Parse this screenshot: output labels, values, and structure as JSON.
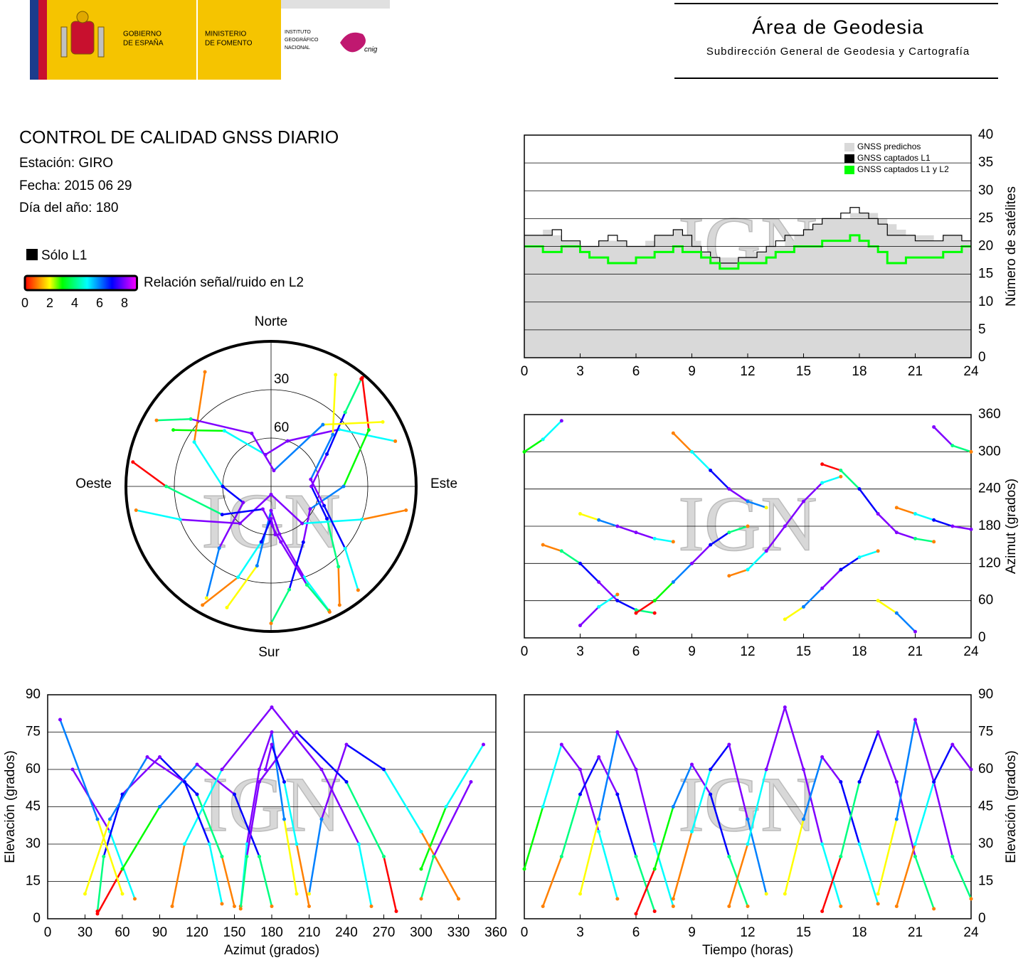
{
  "header": {
    "gov": [
      "GOBIERNO",
      "DE ESPAÑA"
    ],
    "ministry": [
      "MINISTERIO",
      "DE FOMENTO"
    ],
    "institute": [
      "INSTITUTO",
      "GEOGRÁFICO",
      "NACIONAL"
    ],
    "cnig": "cnig",
    "area": "Área de Geodesia",
    "subdirection": "Subdirección General de Geodesia y Cartografía"
  },
  "report": {
    "title": "CONTROL DE CALIDAD GNSS DIARIO",
    "station": "Estación: GIRO",
    "date": "Fecha: 2015 06 29",
    "doy": "Día del año: 180"
  },
  "legend": {
    "l1_only": "Sólo L1",
    "l1_color": "#000000",
    "snr_label": "Relación señal/ruido en L2",
    "lim": [
      0,
      9
    ],
    "ticks": [
      0,
      2,
      4,
      6,
      8
    ],
    "colors": [
      "#ff0000",
      "#ff8000",
      "#ffff00",
      "#00ff00",
      "#00ff80",
      "#00ffff",
      "#0080ff",
      "#0000ff",
      "#8000ff",
      "#ff00ff"
    ]
  },
  "watermark": "IGN",
  "satellite_passes": [
    {
      "time": [
        0,
        1,
        2,
        3,
        4,
        5
      ],
      "azimuth": [
        300,
        320,
        350,
        20,
        50,
        70
      ],
      "elevation": [
        20,
        45,
        70,
        60,
        35,
        8
      ],
      "snr": [
        3,
        5,
        8,
        8,
        5,
        1
      ]
    },
    {
      "time": [
        1,
        2,
        3,
        4,
        5,
        6,
        7
      ],
      "azimuth": [
        150,
        140,
        120,
        90,
        60,
        45,
        40
      ],
      "elevation": [
        5,
        25,
        50,
        65,
        50,
        25,
        3
      ],
      "snr": [
        1,
        4,
        7,
        8,
        7,
        4,
        0
      ]
    },
    {
      "time": [
        3,
        4,
        5,
        6,
        7,
        8
      ],
      "azimuth": [
        200,
        190,
        180,
        170,
        160,
        155
      ],
      "elevation": [
        10,
        40,
        75,
        60,
        30,
        5
      ],
      "snr": [
        2,
        6,
        8,
        8,
        5,
        1
      ]
    },
    {
      "time": [
        6,
        7,
        8,
        9,
        10,
        11,
        12
      ],
      "azimuth": [
        40,
        60,
        90,
        120,
        150,
        170,
        180
      ],
      "elevation": [
        2,
        20,
        45,
        62,
        50,
        25,
        5
      ],
      "snr": [
        0,
        3,
        6,
        8,
        7,
        4,
        1
      ]
    },
    {
      "time": [
        8,
        9,
        10,
        11,
        12,
        13
      ],
      "azimuth": [
        330,
        300,
        270,
        240,
        220,
        210
      ],
      "elevation": [
        8,
        35,
        60,
        70,
        40,
        10
      ],
      "snr": [
        1,
        5,
        7,
        8,
        6,
        2
      ]
    },
    {
      "time": [
        11,
        12,
        13,
        14,
        15,
        16,
        17
      ],
      "azimuth": [
        100,
        110,
        140,
        180,
        220,
        250,
        260
      ],
      "elevation": [
        5,
        30,
        60,
        85,
        60,
        30,
        5
      ],
      "snr": [
        1,
        5,
        8,
        8,
        8,
        5,
        1
      ]
    },
    {
      "time": [
        14,
        15,
        16,
        17,
        18,
        19
      ],
      "azimuth": [
        30,
        50,
        80,
        110,
        130,
        140
      ],
      "elevation": [
        10,
        40,
        65,
        55,
        30,
        6
      ],
      "snr": [
        2,
        6,
        8,
        7,
        5,
        1
      ]
    },
    {
      "time": [
        16,
        17,
        18,
        19,
        20,
        21,
        22
      ],
      "azimuth": [
        280,
        270,
        240,
        200,
        170,
        160,
        155
      ],
      "elevation": [
        3,
        25,
        55,
        75,
        55,
        25,
        4
      ],
      "snr": [
        0,
        4,
        7,
        8,
        8,
        4,
        1
      ]
    },
    {
      "time": [
        19,
        20,
        21,
        22,
        23,
        24
      ],
      "azimuth": [
        60,
        40,
        10,
        340,
        310,
        300
      ],
      "elevation": [
        10,
        40,
        80,
        55,
        25,
        8
      ],
      "snr": [
        2,
        6,
        8,
        8,
        4,
        1
      ]
    },
    {
      "time": [
        20,
        21,
        22,
        23,
        24
      ],
      "azimuth": [
        210,
        200,
        190,
        180,
        175
      ],
      "elevation": [
        5,
        30,
        55,
        70,
        60
      ],
      "snr": [
        1,
        5,
        7,
        8,
        8
      ]
    }
  ],
  "chart_data": [
    {
      "type": "step",
      "y_label": "Número de satélites",
      "legend": "upper right",
      "grid": true,
      "x": [
        0,
        0.5,
        1,
        1.5,
        2,
        2.5,
        3,
        3.5,
        4,
        4.5,
        5,
        5.5,
        6,
        6.5,
        7,
        7.5,
        8,
        8.5,
        9,
        9.5,
        10,
        10.5,
        11,
        11.5,
        12,
        12.5,
        13,
        13.5,
        14,
        14.5,
        15,
        15.5,
        16,
        16.5,
        17,
        17.5,
        18,
        18.5,
        19,
        19.5,
        20,
        20.5,
        21,
        21.5,
        22,
        22.5,
        23,
        23.5,
        24
      ],
      "series": [
        {
          "name": "GNSS predichos",
          "color": "#d9d9d9",
          "values": [
            22,
            22,
            23,
            22,
            21,
            21,
            20,
            20,
            21,
            21,
            21,
            20,
            20,
            21,
            22,
            22,
            23,
            22,
            21,
            19,
            18,
            18,
            18,
            18,
            19,
            19,
            20,
            20,
            21,
            22,
            23,
            24,
            25,
            25,
            25,
            26,
            26,
            26,
            25,
            24,
            23,
            22,
            22,
            22,
            21,
            22,
            22,
            21,
            21
          ]
        },
        {
          "name": "GNSS captados L1",
          "color": "#000000",
          "values": [
            22,
            22,
            22,
            23,
            21,
            21,
            20,
            20,
            21,
            22,
            21,
            20,
            20,
            20,
            22,
            22,
            23,
            22,
            20,
            19,
            18,
            17,
            17,
            18,
            18,
            19,
            20,
            21,
            22,
            22,
            23,
            24,
            25,
            25,
            26,
            27,
            26,
            25,
            24,
            22,
            22,
            22,
            21,
            21,
            21,
            22,
            22,
            21,
            21
          ]
        },
        {
          "name": "GNSS captados L1 y L2",
          "color": "#00ff00",
          "values": [
            20,
            20,
            19,
            19,
            20,
            20,
            19,
            18,
            18,
            17,
            17,
            17,
            18,
            18,
            19,
            19,
            20,
            19,
            19,
            18,
            17,
            16,
            16,
            17,
            17,
            17,
            18,
            19,
            19,
            20,
            20,
            20,
            21,
            21,
            21,
            22,
            21,
            20,
            19,
            17,
            17,
            18,
            18,
            18,
            18,
            19,
            19,
            20,
            20
          ]
        }
      ],
      "xlim": [
        0,
        24
      ],
      "xticks": [
        0,
        3,
        6,
        9,
        12,
        15,
        18,
        21,
        24
      ],
      "ylim": [
        0,
        40
      ],
      "yticks": [
        0,
        5,
        10,
        15,
        20,
        25,
        30,
        35,
        40
      ]
    },
    {
      "type": "scatter",
      "y_label": "Azimut (grados)",
      "grid": true,
      "xlim": [
        0,
        24
      ],
      "xticks": [
        0,
        3,
        6,
        9,
        12,
        15,
        18,
        21,
        24
      ],
      "ylim": [
        0,
        360
      ],
      "yticks": [
        0,
        60,
        120,
        180,
        240,
        300,
        360
      ]
    },
    {
      "type": "polar",
      "north": "Norte",
      "south": "Sur",
      "east": "Este",
      "west": "Oeste",
      "rlim": [
        0,
        90
      ],
      "rticks": [
        30,
        60
      ]
    },
    {
      "type": "scatter",
      "x_label": "Azimut (grados)",
      "y_label": "Elevación (grados)",
      "grid": true,
      "xlim": [
        0,
        360
      ],
      "xticks": [
        0,
        30,
        60,
        90,
        120,
        150,
        180,
        210,
        240,
        270,
        300,
        330,
        360
      ],
      "ylim": [
        0,
        90
      ],
      "yticks": [
        0,
        15,
        30,
        45,
        60,
        75,
        90
      ]
    },
    {
      "type": "scatter",
      "x_label": "Tiempo (horas)",
      "y_label": "Elevación (grados)",
      "grid": true,
      "xlim": [
        0,
        24
      ],
      "xticks": [
        0,
        3,
        6,
        9,
        12,
        15,
        18,
        21,
        24
      ],
      "ylim": [
        0,
        90
      ],
      "yticks": [
        0,
        15,
        30,
        45,
        60,
        75,
        90
      ]
    }
  ]
}
